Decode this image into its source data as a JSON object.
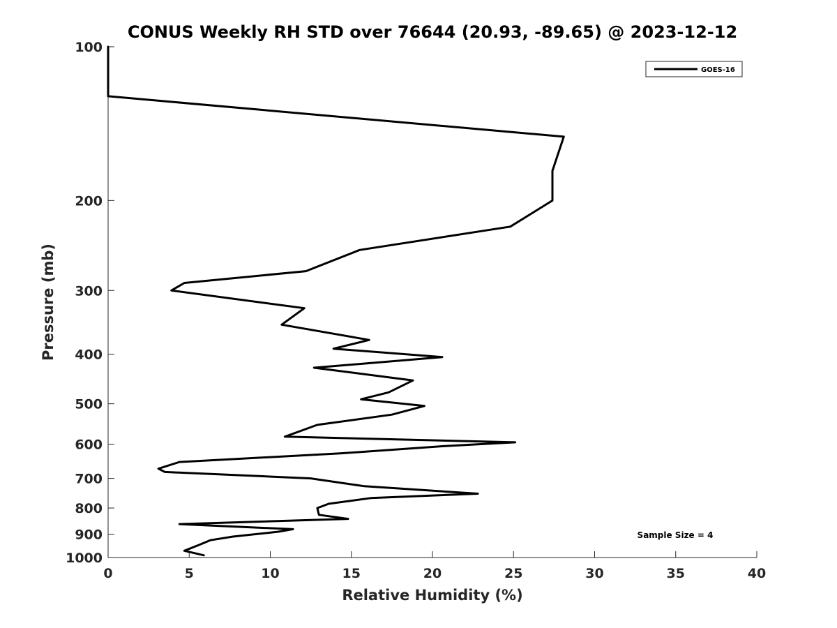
{
  "chart_data": {
    "type": "line",
    "title": "CONUS Weekly RH STD over 76644 (20.93, -89.65) @ 2023-12-12",
    "xlabel": "Relative Humidity (%)",
    "ylabel": "Pressure (mb)",
    "xlim": [
      0,
      40
    ],
    "ylim": [
      100,
      1000
    ],
    "y_reversed": true,
    "y_scale": "log",
    "grid": false,
    "legend_position": "top-right",
    "x_ticks": [
      "0",
      "5",
      "10",
      "15",
      "20",
      "25",
      "30",
      "35",
      "40"
    ],
    "y_ticks": [
      "100",
      "200",
      "300",
      "400",
      "500",
      "600",
      "700",
      "800",
      "900",
      "1000"
    ],
    "series": [
      {
        "name": "GOES-16",
        "color": "#000000",
        "points": [
          [
            0,
            100
          ],
          [
            0,
            125
          ],
          [
            28.1,
            150
          ],
          [
            27.4,
            175
          ],
          [
            27.4,
            200
          ],
          [
            24.8,
            225
          ],
          [
            15.5,
            250
          ],
          [
            12.2,
            275
          ],
          [
            4.7,
            290
          ],
          [
            3.9,
            300
          ],
          [
            12.1,
            325
          ],
          [
            10.7,
            350
          ],
          [
            16.1,
            375
          ],
          [
            13.9,
            390
          ],
          [
            20.6,
            405
          ],
          [
            12.7,
            425
          ],
          [
            18.8,
            450
          ],
          [
            17.3,
            475
          ],
          [
            15.6,
            490
          ],
          [
            19.5,
            505
          ],
          [
            17.5,
            525
          ],
          [
            12.9,
            550
          ],
          [
            10.9,
            580
          ],
          [
            25.1,
            595
          ],
          [
            20.8,
            605
          ],
          [
            14.4,
            625
          ],
          [
            4.4,
            650
          ],
          [
            3.1,
            670
          ],
          [
            3.5,
            680
          ],
          [
            12.5,
            700
          ],
          [
            15.8,
            725
          ],
          [
            22.8,
            750
          ],
          [
            16.2,
            765
          ],
          [
            13.6,
            785
          ],
          [
            12.9,
            800
          ],
          [
            13.0,
            825
          ],
          [
            14.8,
            840
          ],
          [
            4.4,
            860
          ],
          [
            11.4,
            880
          ],
          [
            10.5,
            890
          ],
          [
            7.7,
            910
          ],
          [
            6.3,
            925
          ],
          [
            5.6,
            945
          ],
          [
            4.7,
            970
          ],
          [
            5.9,
            990
          ]
        ]
      }
    ],
    "annotation": "Sample Size = 4"
  }
}
